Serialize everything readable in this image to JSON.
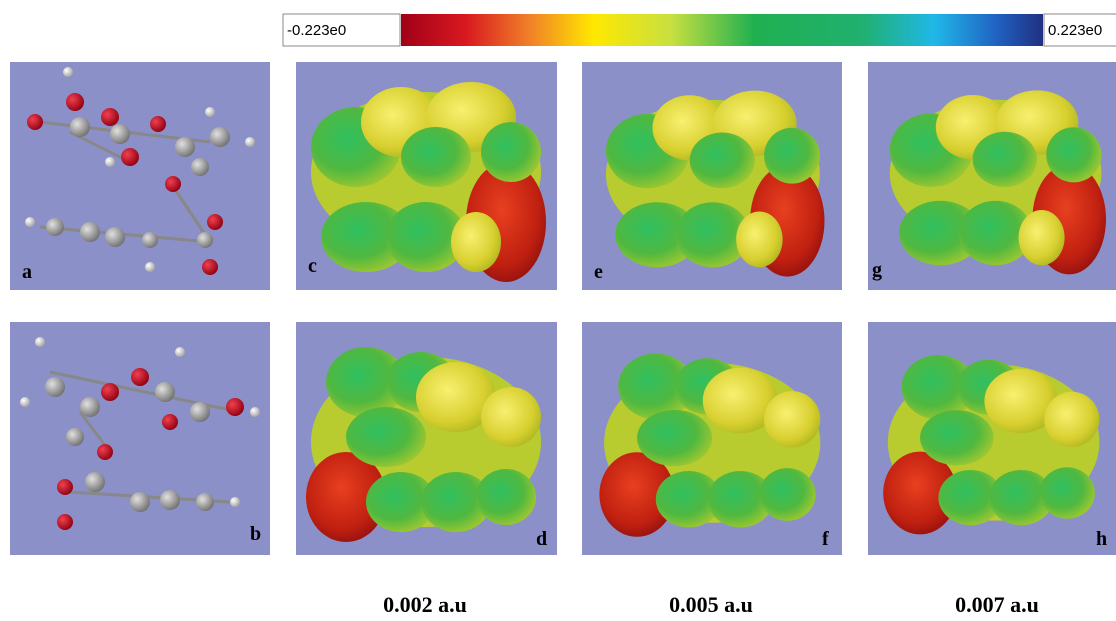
{
  "colorbar": {
    "min_label": "-0.223e0",
    "max_label": "0.223e0"
  },
  "panels": [
    {
      "label": "a"
    },
    {
      "label": "c"
    },
    {
      "label": "e"
    },
    {
      "label": "g"
    },
    {
      "label": "b"
    },
    {
      "label": "d"
    },
    {
      "label": "f"
    },
    {
      "label": "h"
    }
  ],
  "captions": [
    "0.002 a.u",
    "0.005 a.u",
    "0.007 a.u"
  ]
}
